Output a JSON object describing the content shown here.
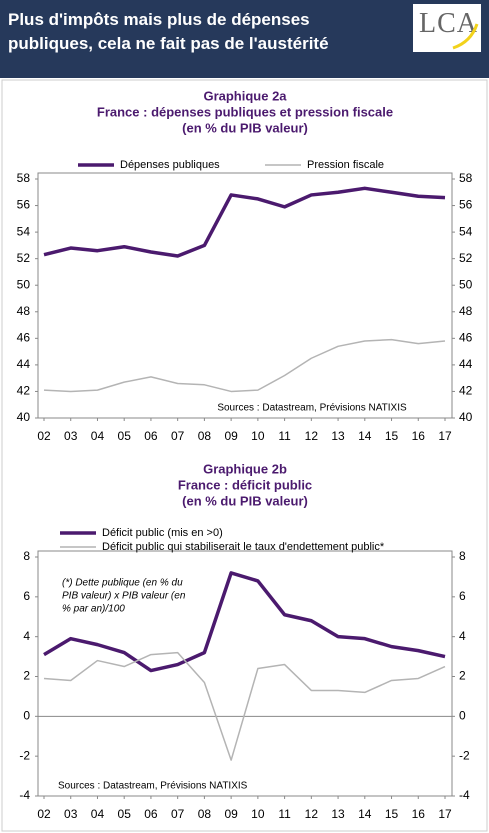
{
  "header": {
    "title": "Plus d'impôts mais plus de dépenses publiques, cela ne fait pas de l'austérité",
    "logo": "LCA"
  },
  "chart_data": [
    {
      "type": "line",
      "title": "Graphique 2a",
      "subtitle": [
        "France : dépenses publiques et pression fiscale",
        "(en % du PIB valeur)"
      ],
      "categories": [
        "02",
        "03",
        "04",
        "05",
        "06",
        "07",
        "08",
        "09",
        "10",
        "11",
        "12",
        "13",
        "14",
        "15",
        "16",
        "17"
      ],
      "series": [
        {
          "name": "Dépenses publiques",
          "color": "#4b1a6e",
          "values": [
            52.3,
            52.8,
            52.6,
            52.9,
            52.5,
            52.2,
            53.0,
            56.8,
            56.5,
            55.9,
            56.8,
            57.0,
            57.3,
            57.0,
            56.7,
            56.6
          ]
        },
        {
          "name": "Pression fiscale",
          "color": "#b4b4b4",
          "values": [
            42.1,
            42.0,
            42.1,
            42.7,
            43.1,
            42.6,
            42.5,
            42.0,
            42.1,
            43.2,
            44.5,
            45.4,
            45.8,
            45.9,
            45.6,
            45.8
          ]
        }
      ],
      "ylim": [
        40,
        58
      ],
      "yticks": [
        40,
        42,
        44,
        46,
        48,
        50,
        52,
        54,
        56,
        58
      ],
      "y2lim": [
        40,
        58
      ],
      "y2ticks": [
        40,
        42,
        44,
        46,
        48,
        50,
        52,
        54,
        56,
        58
      ],
      "legend": "top",
      "annotations": [
        "Sources : Datastream, Prévisions NATIXIS"
      ]
    },
    {
      "type": "line",
      "title": "Graphique 2b",
      "subtitle": [
        "France : déficit public",
        "(en % du PIB valeur)"
      ],
      "categories": [
        "02",
        "03",
        "04",
        "05",
        "06",
        "07",
        "08",
        "09",
        "10",
        "11",
        "12",
        "13",
        "14",
        "15",
        "16",
        "17"
      ],
      "series": [
        {
          "name": "Déficit public (mis en >0)",
          "color": "#4b1a6e",
          "values": [
            3.1,
            3.9,
            3.6,
            3.2,
            2.3,
            2.6,
            3.2,
            7.2,
            6.8,
            5.1,
            4.8,
            4.0,
            3.9,
            3.5,
            3.3,
            3.0
          ]
        },
        {
          "name": "Déficit public qui stabiliserait le taux d'endettement public*",
          "color": "#b4b4b4",
          "values": [
            1.9,
            1.8,
            2.8,
            2.5,
            3.1,
            3.2,
            1.7,
            -2.2,
            2.4,
            2.6,
            1.3,
            1.3,
            1.2,
            1.8,
            1.9,
            2.5
          ]
        }
      ],
      "ylim": [
        -4,
        8
      ],
      "yticks": [
        -4,
        -2,
        0,
        2,
        4,
        6,
        8
      ],
      "y2lim": [
        -4,
        8
      ],
      "y2ticks": [
        -4,
        -2,
        0,
        2,
        4,
        6,
        8
      ],
      "legend": "top-left",
      "note": [
        "(*) Dette publique (en % du",
        "PIB valeur) x PIB valeur (en",
        "% par an)/100"
      ],
      "annotations": [
        "Sources : Datastream, Prévisions NATIXIS"
      ]
    }
  ]
}
